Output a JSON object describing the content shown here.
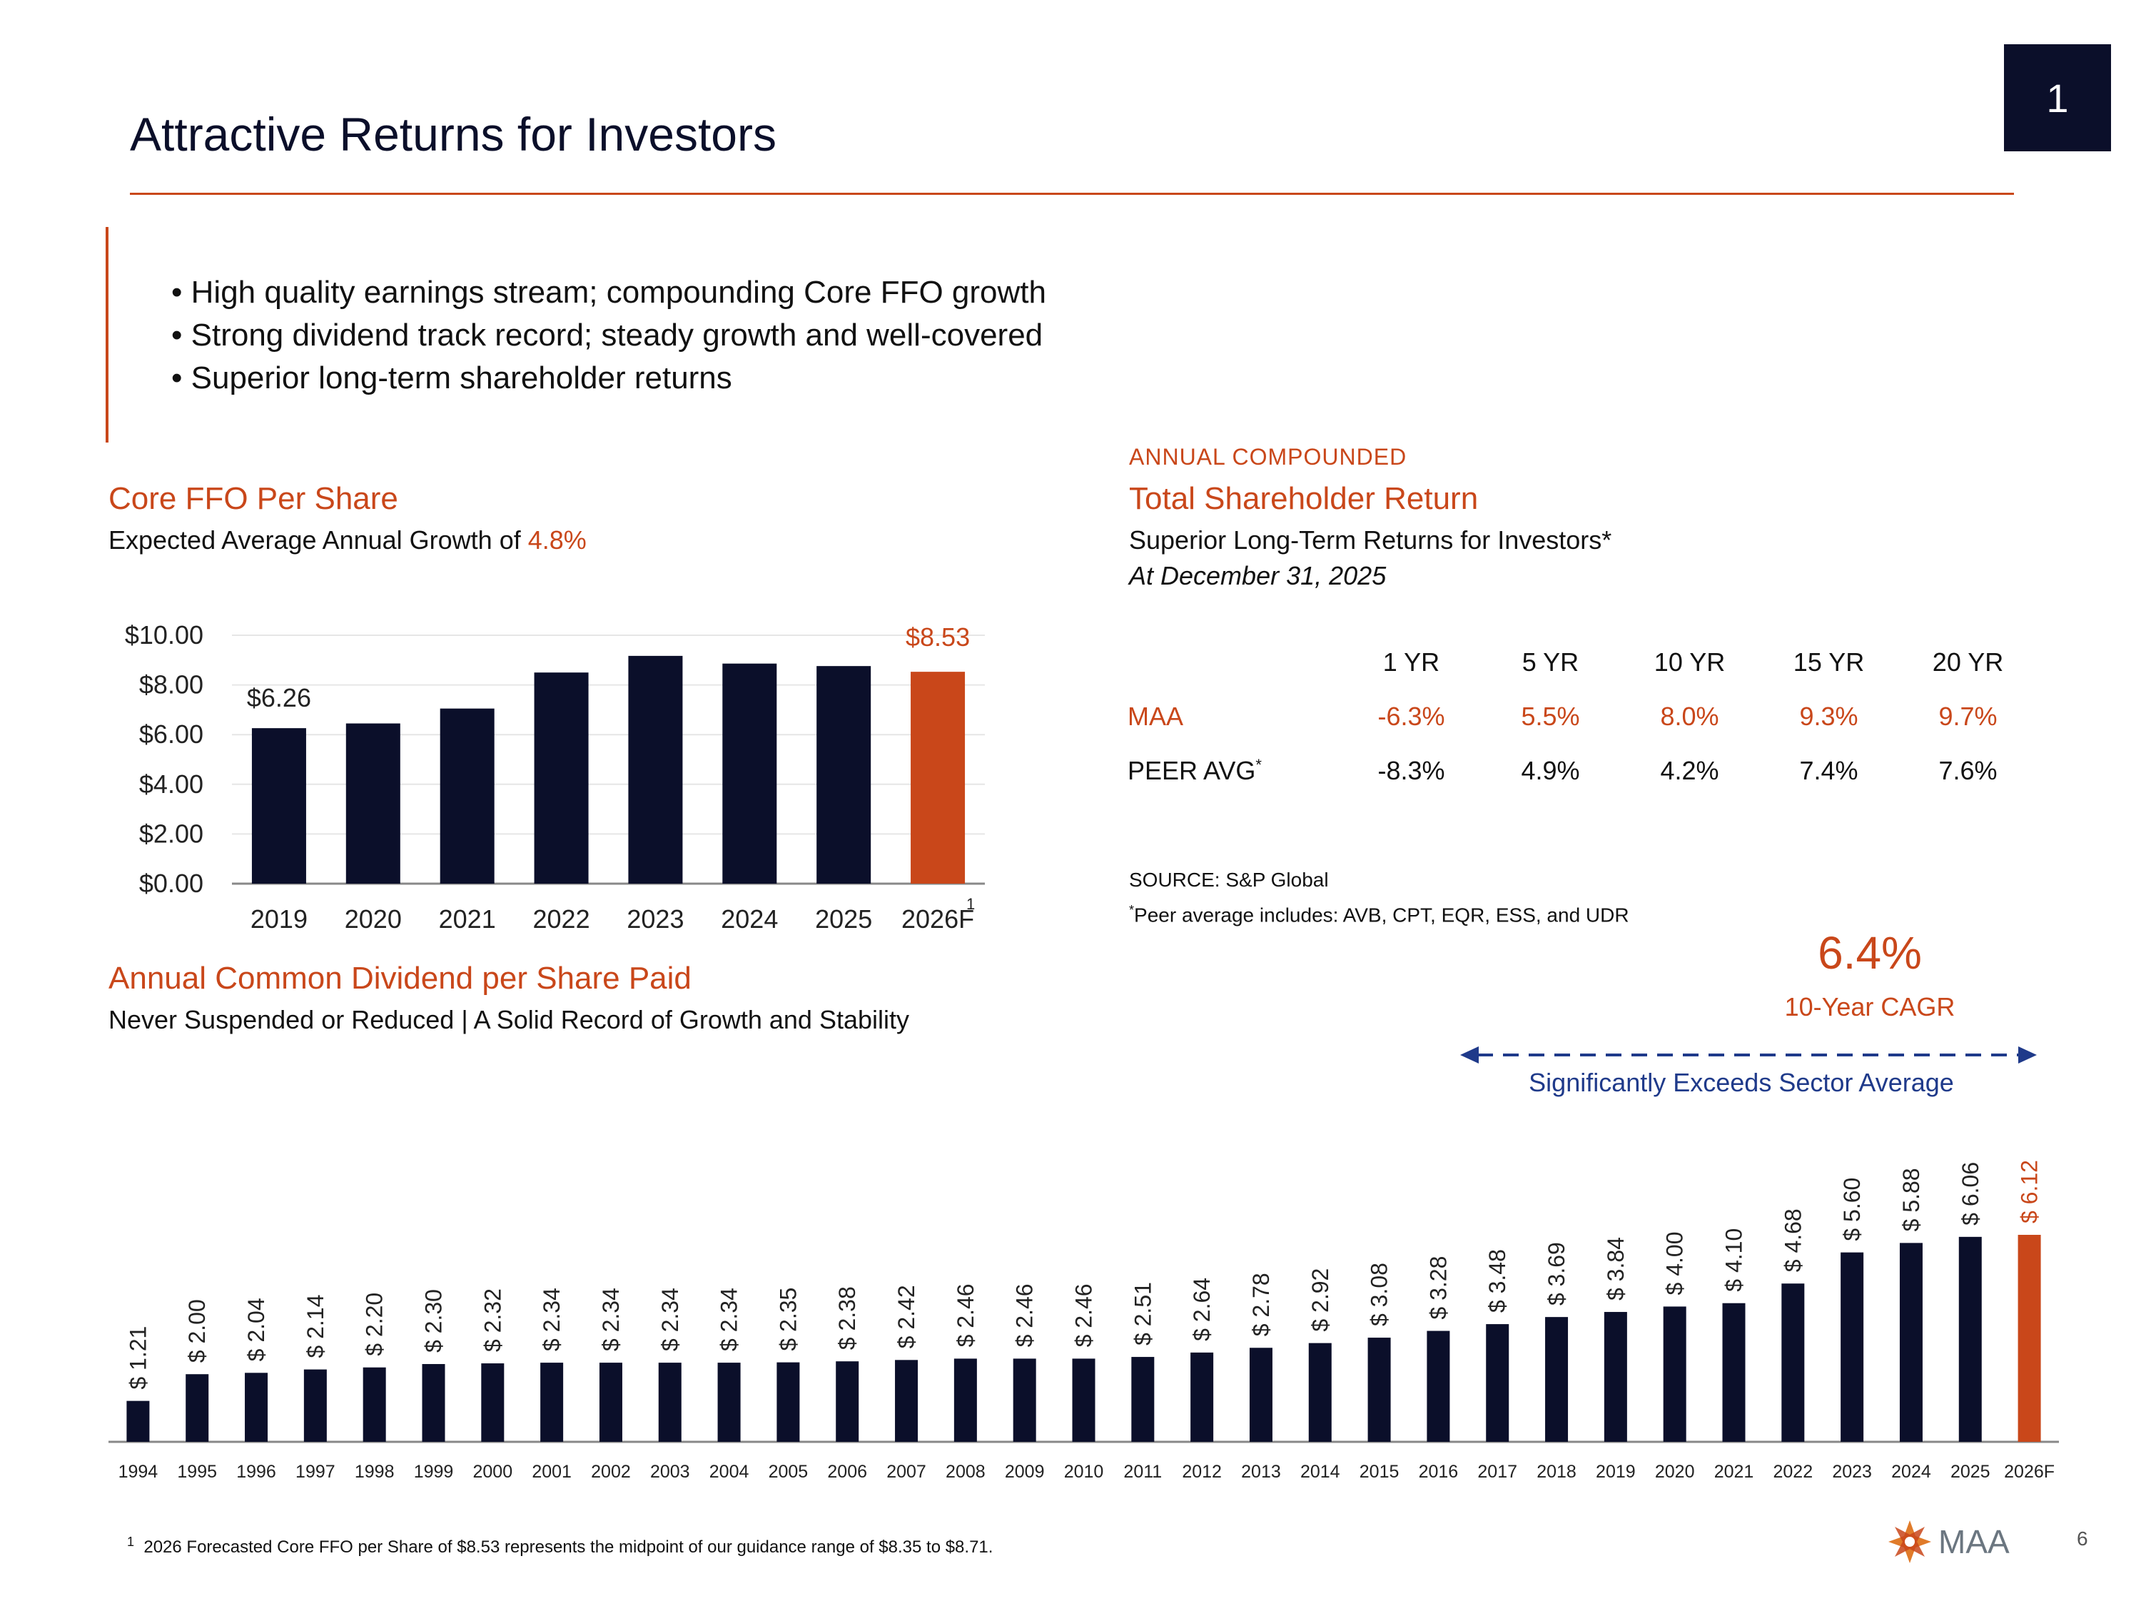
{
  "page_badge": "1",
  "title": "Attractive Returns for Investors",
  "bullets": [
    "High quality earnings stream; compounding Core FFO growth",
    "Strong dividend track record; steady growth and well-covered",
    "Superior long-term shareholder returns"
  ],
  "ffo_section": {
    "title": "Core FFO Per Share",
    "subtitle_prefix": "Expected Average Annual Growth of ",
    "subtitle_highlight": "4.8%"
  },
  "tsr_section": {
    "kicker": "ANNUAL COMPOUNDED",
    "title": "Total Shareholder Return",
    "subtitle": "Superior Long-Term Returns for Investors*",
    "date": "At December 31, 2025",
    "columns": [
      "1 YR",
      "5 YR",
      "10 YR",
      "15 YR",
      "20 YR"
    ],
    "rows": [
      {
        "label": "MAA",
        "values": [
          "-6.3%",
          "5.5%",
          "8.0%",
          "9.3%",
          "9.7%"
        ]
      },
      {
        "label": "PEER AVG",
        "label_sup": "*",
        "values": [
          "-8.3%",
          "4.9%",
          "4.2%",
          "7.4%",
          "7.6%"
        ]
      }
    ],
    "source": "SOURCE:  S&P Global",
    "peer_note_sup": "*",
    "peer_note": "Peer average includes: AVB, CPT, EQR, ESS, and UDR"
  },
  "cagr": {
    "value": "6.4%",
    "label": "10-Year CAGR",
    "exceeds": "Significantly Exceeds Sector Average"
  },
  "dividend_section": {
    "title": "Annual Common Dividend per Share Paid",
    "subtitle": "Never Suspended or Reduced | A Solid Record of Growth and Stability"
  },
  "footnote": {
    "marker": "1",
    "text": "2026 Forecasted Core FFO per Share of $8.53 represents the midpoint of our guidance range of $8.35 to $8.71."
  },
  "logo_text": "MAA",
  "page_number": "6",
  "colors": {
    "navy": "#0b0f2a",
    "orange": "#c9471a",
    "blue_arrow": "#1f3a8a"
  },
  "chart_data": [
    {
      "type": "bar",
      "categories": [
        "2019",
        "2020",
        "2021",
        "2022",
        "2023",
        "2024",
        "2025",
        "2026F"
      ],
      "values": [
        6.26,
        6.45,
        7.05,
        8.5,
        9.17,
        8.86,
        8.76,
        8.53
      ],
      "y_tick_labels": [
        "$0.00",
        "$2.00",
        "$4.00",
        "$6.00",
        "$8.00",
        "$10.00"
      ],
      "y_ticks": [
        0,
        2,
        4,
        6,
        8,
        10
      ],
      "ylim": [
        0,
        10
      ],
      "data_labels": {
        "2019": "$6.26",
        "2026F": "$8.53"
      },
      "category_superscript": {
        "2026F": "1"
      },
      "highlight_category": "2026F",
      "grid": true
    },
    {
      "type": "bar",
      "categories": [
        "1994",
        "1995",
        "1996",
        "1997",
        "1998",
        "1999",
        "2000",
        "2001",
        "2002",
        "2003",
        "2004",
        "2005",
        "2006",
        "2007",
        "2008",
        "2009",
        "2010",
        "2011",
        "2012",
        "2013",
        "2014",
        "2015",
        "2016",
        "2017",
        "2018",
        "2019",
        "2020",
        "2021",
        "2022",
        "2023",
        "2024",
        "2025",
        "2026F"
      ],
      "values": [
        1.21,
        2.0,
        2.04,
        2.14,
        2.2,
        2.3,
        2.32,
        2.34,
        2.34,
        2.34,
        2.34,
        2.35,
        2.38,
        2.42,
        2.46,
        2.46,
        2.46,
        2.51,
        2.64,
        2.78,
        2.92,
        3.08,
        3.28,
        3.48,
        3.69,
        3.84,
        4.0,
        4.1,
        4.68,
        5.6,
        5.88,
        6.06,
        6.12
      ],
      "data_labels": [
        "$ 1.21",
        "$ 2.00",
        "$ 2.04",
        "$ 2.14",
        "$ 2.20",
        "$ 2.30",
        "$ 2.32",
        "$ 2.34",
        "$ 2.34",
        "$ 2.34",
        "$ 2.34",
        "$ 2.35",
        "$ 2.38",
        "$ 2.42",
        "$ 2.46",
        "$ 2.46",
        "$ 2.46",
        "$ 2.51",
        "$ 2.64",
        "$ 2.78",
        "$ 2.92",
        "$ 3.08",
        "$ 3.28",
        "$ 3.48",
        "$ 3.69",
        "$ 3.84",
        "$ 4.00",
        "$ 4.10",
        "$ 4.68",
        "$ 5.60",
        "$ 5.88",
        "$ 6.06",
        "$ 6.12"
      ],
      "ylim": [
        0,
        6.12
      ],
      "highlight_category": "2026F",
      "grid": false
    }
  ]
}
